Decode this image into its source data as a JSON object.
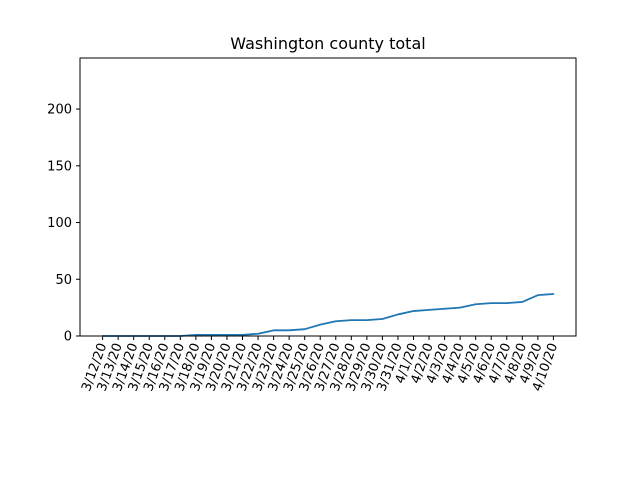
{
  "chart_data": {
    "type": "line",
    "title": "Washington county total",
    "xlabel": "",
    "ylabel": "",
    "ylim": [
      0,
      245
    ],
    "yticks": [
      0,
      50,
      100,
      150,
      200
    ],
    "grid": false,
    "line_color": "#1f77b4",
    "categories": [
      "3/12/20",
      "3/13/20",
      "3/14/20",
      "3/15/20",
      "3/16/20",
      "3/17/20",
      "3/18/20",
      "3/19/20",
      "3/20/20",
      "3/21/20",
      "3/22/20",
      "3/23/20",
      "3/24/20",
      "3/25/20",
      "3/26/20",
      "3/27/20",
      "3/28/20",
      "3/29/20",
      "3/30/20",
      "3/31/20",
      "4/1/20",
      "4/2/20",
      "4/3/20",
      "4/4/20",
      "4/5/20",
      "4/6/20",
      "4/7/20",
      "4/8/20",
      "4/9/20",
      "4/10/20"
    ],
    "series": [
      {
        "values": [
          0,
          0,
          0,
          0,
          0,
          0,
          1,
          1,
          1,
          1,
          2,
          5,
          5,
          6,
          10,
          13,
          14,
          14,
          15,
          19,
          22,
          23,
          24,
          25,
          28,
          29,
          29,
          30,
          36,
          37
        ]
      }
    ]
  }
}
